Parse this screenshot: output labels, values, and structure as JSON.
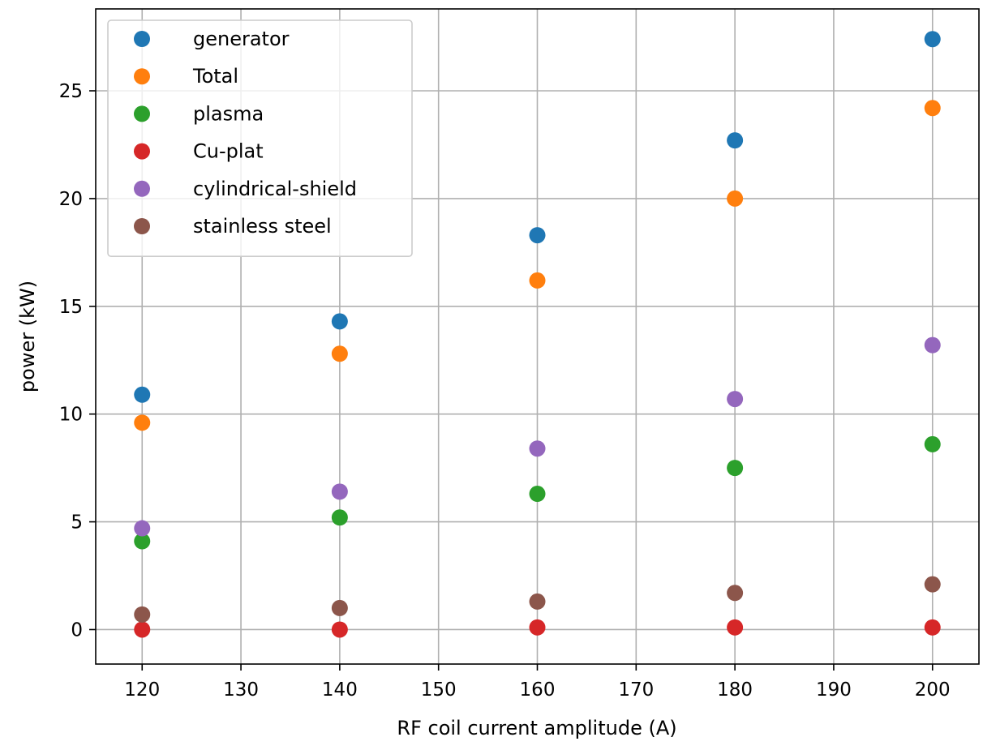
{
  "chart_data": {
    "type": "scatter",
    "title": "",
    "xlabel": "RF coil current amplitude (A)",
    "ylabel": "power (kW)",
    "xlim": [
      115.3,
      204.7
    ],
    "ylim": [
      -1.6,
      28.8
    ],
    "xticks": [
      120,
      130,
      140,
      150,
      160,
      170,
      180,
      190,
      200
    ],
    "yticks": [
      0,
      5,
      10,
      15,
      20,
      25
    ],
    "xtick_labels": [
      "120",
      "130",
      "140",
      "150",
      "160",
      "170",
      "180",
      "190",
      "200"
    ],
    "ytick_labels": [
      "0",
      "5",
      "10",
      "15",
      "20",
      "25"
    ],
    "grid": true,
    "legend_position": "upper-left",
    "x": [
      120,
      140,
      160,
      180,
      200
    ],
    "series": [
      {
        "name": "generator",
        "color": "#1f77b4",
        "values": [
          10.9,
          14.3,
          18.3,
          22.7,
          27.4
        ]
      },
      {
        "name": "Total",
        "color": "#ff7f0e",
        "values": [
          9.6,
          12.8,
          16.2,
          20.0,
          24.2
        ]
      },
      {
        "name": "plasma",
        "color": "#2ca02c",
        "values": [
          4.1,
          5.2,
          6.3,
          7.5,
          8.6
        ]
      },
      {
        "name": "Cu-plat",
        "color": "#d62728",
        "values": [
          0.0,
          0.0,
          0.1,
          0.1,
          0.1
        ]
      },
      {
        "name": "cylindrical-shield",
        "color": "#9467bd",
        "values": [
          4.7,
          6.4,
          8.4,
          10.7,
          13.2
        ]
      },
      {
        "name": "stainless steel",
        "color": "#8c564b",
        "values": [
          0.7,
          1.0,
          1.3,
          1.7,
          2.1
        ]
      }
    ]
  }
}
